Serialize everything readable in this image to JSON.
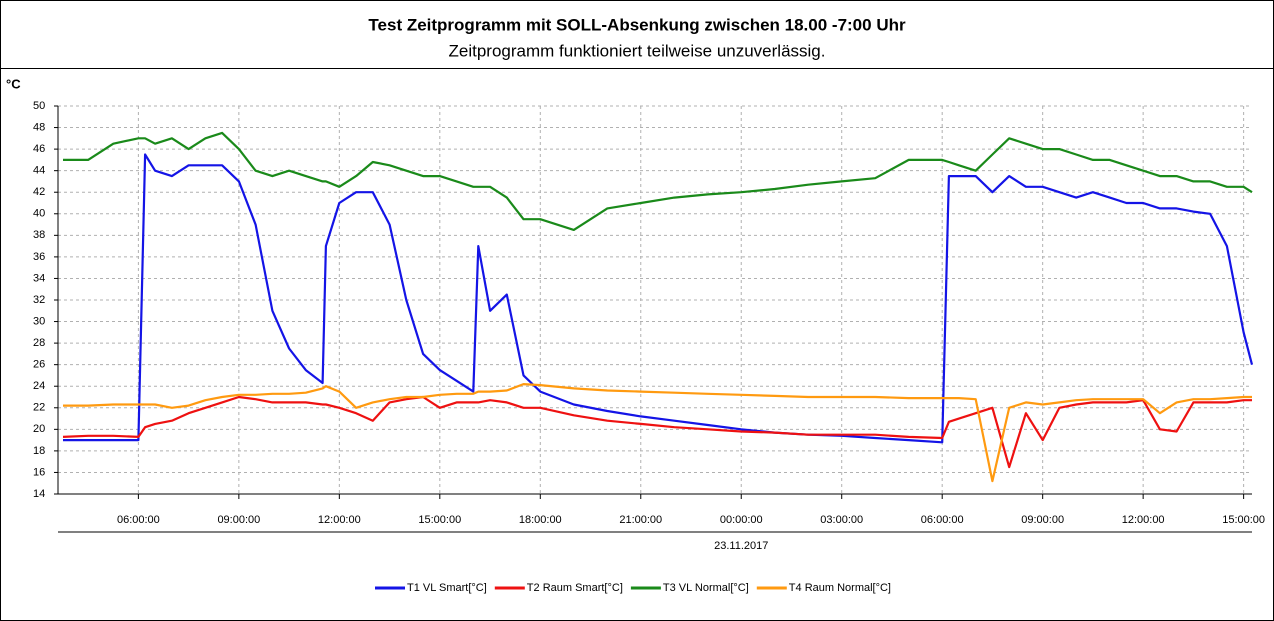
{
  "chart_data": {
    "type": "line",
    "title": "Test Zeitprogramm mit SOLL-Absenkung zwischen 18.00 -7:00 Uhr",
    "subtitle": "Zeitprogramm funktioniert teilweise unzuverlässig.",
    "y_label": "°C",
    "x_date_label": "23.11.2017",
    "x": [
      3.75,
      4.5,
      5.25,
      6.0,
      6.2,
      6.5,
      7.0,
      7.5,
      8.0,
      8.5,
      9.0,
      9.5,
      10.0,
      10.5,
      11.0,
      11.5,
      11.6,
      12.0,
      12.5,
      13.0,
      13.5,
      14.0,
      14.5,
      15.0,
      15.5,
      16.0,
      16.15,
      16.5,
      17.0,
      17.5,
      18.0,
      19.0,
      20.0,
      21.0,
      22.0,
      23.0,
      24.0,
      25.0,
      26.0,
      27.0,
      28.0,
      29.0,
      30.0,
      30.2,
      30.5,
      31.0,
      31.5,
      32.0,
      32.5,
      33.0,
      33.5,
      34.0,
      34.5,
      35.0,
      35.5,
      36.0,
      36.5,
      37.0,
      37.5,
      38.0,
      38.5,
      39.0,
      39.25
    ],
    "series": [
      {
        "name": "T1 VL Smart[°C]",
        "color": "#1414e6",
        "values": [
          19,
          19,
          19,
          19,
          45.5,
          44,
          43.5,
          44.5,
          44.5,
          44.5,
          43,
          39,
          31,
          27.5,
          25.5,
          24.3,
          37,
          41,
          42,
          42,
          39,
          32,
          27,
          25.5,
          24.5,
          23.5,
          37,
          31,
          32.5,
          25,
          23.5,
          22.3,
          21.7,
          21.2,
          20.8,
          20.4,
          20,
          19.7,
          19.5,
          19.4,
          19.2,
          19,
          18.8,
          43.5,
          43.5,
          43.5,
          42,
          43.5,
          42.5,
          42.5,
          42,
          41.5,
          42,
          41.5,
          41,
          41,
          40.5,
          40.5,
          40.2,
          40,
          37,
          29,
          26
        ]
      },
      {
        "name": "T2 Raum Smart[°C]",
        "color": "#ee1111",
        "values": [
          19.3,
          19.4,
          19.4,
          19.3,
          20.2,
          20.5,
          20.8,
          21.5,
          22,
          22.5,
          23,
          22.8,
          22.5,
          22.5,
          22.5,
          22.3,
          22.3,
          22,
          21.5,
          20.8,
          22.5,
          22.8,
          23,
          22,
          22.5,
          22.5,
          22.5,
          22.7,
          22.5,
          22,
          22,
          21.3,
          20.8,
          20.5,
          20.2,
          20,
          19.8,
          19.7,
          19.5,
          19.5,
          19.5,
          19.3,
          19.2,
          20.7,
          21,
          21.5,
          22,
          16.5,
          21.5,
          19,
          22,
          22.3,
          22.5,
          22.5,
          22.5,
          22.7,
          20,
          19.8,
          22.5,
          22.5,
          22.5,
          22.7,
          22.7
        ]
      },
      {
        "name": "T3 VL Normal[°C]",
        "color": "#1a8a1a",
        "values": [
          45,
          45,
          46.5,
          47,
          47,
          46.5,
          47,
          46,
          47,
          47.5,
          46,
          44,
          43.5,
          44,
          43.5,
          43,
          43,
          42.5,
          43.5,
          44.8,
          44.5,
          44,
          43.5,
          43.5,
          43,
          42.5,
          42.5,
          42.5,
          41.5,
          39.5,
          39.5,
          38.5,
          40.5,
          41,
          41.5,
          41.8,
          42,
          42.3,
          42.7,
          43,
          43.3,
          45,
          45,
          44.8,
          44.5,
          44,
          45.5,
          47,
          46.5,
          46,
          46,
          45.5,
          45,
          45,
          44.5,
          44,
          43.5,
          43.5,
          43,
          43,
          42.5,
          42.5,
          42
        ]
      },
      {
        "name": "T4 Raum Normal[°C]",
        "color": "#ff9a10",
        "values": [
          22.2,
          22.2,
          22.3,
          22.3,
          22.3,
          22.3,
          22,
          22.2,
          22.7,
          23,
          23.2,
          23.2,
          23.3,
          23.3,
          23.4,
          23.8,
          24,
          23.5,
          22,
          22.5,
          22.8,
          23,
          23,
          23.2,
          23.3,
          23.3,
          23.5,
          23.5,
          23.6,
          24.2,
          24.1,
          23.8,
          23.6,
          23.5,
          23.4,
          23.3,
          23.2,
          23.1,
          23,
          23,
          23,
          22.9,
          22.9,
          22.9,
          22.9,
          22.8,
          15.2,
          22,
          22.5,
          22.3,
          22.5,
          22.7,
          22.8,
          22.8,
          22.8,
          22.8,
          21.5,
          22.5,
          22.8,
          22.8,
          22.9,
          23,
          23
        ]
      }
    ],
    "xlim": [
      3.6,
      39.25
    ],
    "xticks": [
      {
        "value": 6,
        "label": "06:00:00"
      },
      {
        "value": 9,
        "label": "09:00:00"
      },
      {
        "value": 12,
        "label": "12:00:00"
      },
      {
        "value": 15,
        "label": "15:00:00"
      },
      {
        "value": 18,
        "label": "18:00:00"
      },
      {
        "value": 21,
        "label": "21:00:00"
      },
      {
        "value": 24,
        "label": "00:00:00"
      },
      {
        "value": 27,
        "label": "03:00:00"
      },
      {
        "value": 30,
        "label": "06:00:00"
      },
      {
        "value": 33,
        "label": "09:00:00"
      },
      {
        "value": 36,
        "label": "12:00:00"
      },
      {
        "value": 39,
        "label": "15:00:00"
      }
    ],
    "ylim": [
      14,
      50
    ],
    "yticks": [
      14,
      16,
      18,
      20,
      22,
      24,
      26,
      28,
      30,
      32,
      34,
      36,
      38,
      40,
      42,
      44,
      46,
      48,
      50
    ],
    "grid": true,
    "legend": "bottom"
  }
}
